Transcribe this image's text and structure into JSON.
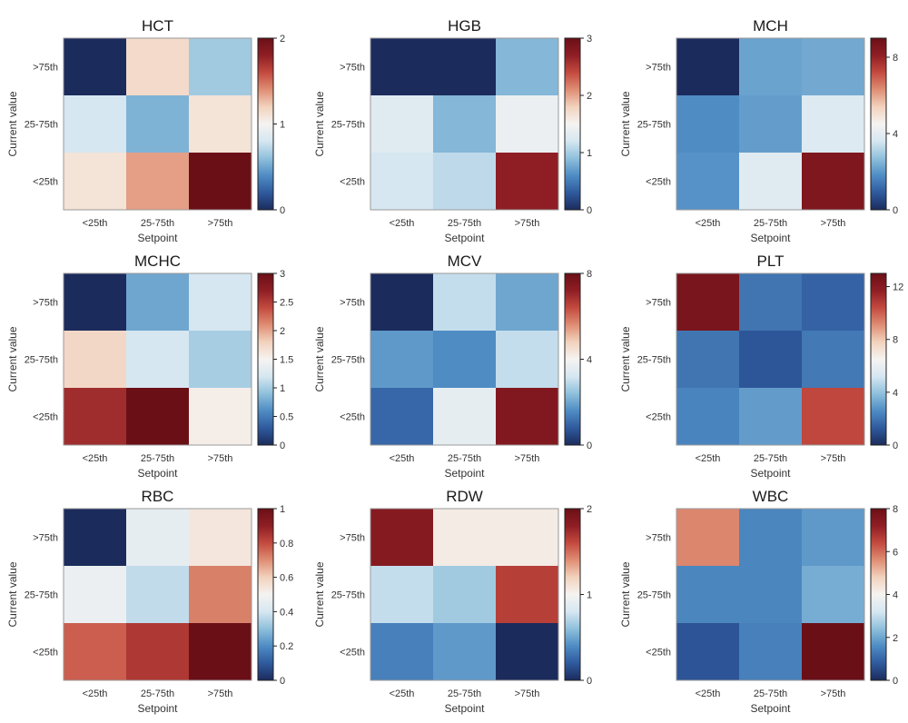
{
  "chart_data": [
    {
      "type": "heatmap",
      "title": "HCT",
      "xlabel": "Setpoint",
      "ylabel": "Current value",
      "x_categories": [
        "<25th",
        "25-75th",
        ">75th"
      ],
      "y_categories": [
        ">75th",
        "25-75th",
        "<25th"
      ],
      "values": [
        [
          0.0,
          1.15,
          0.65
        ],
        [
          0.8,
          0.55,
          1.1
        ],
        [
          1.1,
          1.35,
          2.0
        ]
      ],
      "colorbar": {
        "min": 0,
        "max": 2,
        "ticks": [
          "0",
          "1",
          "2"
        ]
      }
    },
    {
      "type": "heatmap",
      "title": "HGB",
      "xlabel": "Setpoint",
      "ylabel": "Current value",
      "x_categories": [
        "<25th",
        "25-75th",
        ">75th"
      ],
      "y_categories": [
        ">75th",
        "25-75th",
        "<25th"
      ],
      "values": [
        [
          0.0,
          0.0,
          0.85
        ],
        [
          1.3,
          0.85,
          1.4
        ],
        [
          1.2,
          1.1,
          2.7
        ]
      ],
      "colorbar": {
        "min": 0,
        "max": 3,
        "ticks": [
          "0",
          "1",
          "2",
          "3"
        ]
      }
    },
    {
      "type": "heatmap",
      "title": "MCH",
      "xlabel": "Setpoint",
      "ylabel": "Current value",
      "x_categories": [
        "<25th",
        "25-75th",
        ">75th"
      ],
      "y_categories": [
        ">75th",
        "25-75th",
        "<25th"
      ],
      "values": [
        [
          0.0,
          2.2,
          2.3
        ],
        [
          1.8,
          2.1,
          3.8
        ],
        [
          1.9,
          3.9,
          8.5
        ]
      ],
      "colorbar": {
        "min": 0,
        "max": 9,
        "ticks": [
          "0",
          "4",
          "8"
        ]
      }
    },
    {
      "type": "heatmap",
      "title": "MCHC",
      "xlabel": "Setpoint",
      "ylabel": "Current value",
      "x_categories": [
        "<25th",
        "25-75th",
        ">75th"
      ],
      "y_categories": [
        ">75th",
        "25-75th",
        "<25th"
      ],
      "values": [
        [
          0.0,
          0.75,
          1.2
        ],
        [
          1.75,
          1.2,
          1.0
        ],
        [
          2.6,
          3.0,
          1.55
        ]
      ],
      "colorbar": {
        "min": 0,
        "max": 3,
        "ticks": [
          "0",
          "0.5",
          "1",
          "1.5",
          "2",
          "2.5",
          "3"
        ]
      }
    },
    {
      "type": "heatmap",
      "title": "MCV",
      "xlabel": "Setpoint",
      "ylabel": "Current value",
      "x_categories": [
        "<25th",
        "25-75th",
        ">75th"
      ],
      "y_categories": [
        ">75th",
        "25-75th",
        "<25th"
      ],
      "values": [
        [
          0.0,
          3.0,
          2.0
        ],
        [
          1.8,
          1.6,
          3.0
        ],
        [
          1.0,
          3.6,
          7.5
        ]
      ],
      "colorbar": {
        "min": 0,
        "max": 8,
        "ticks": [
          "0",
          "4",
          "8"
        ]
      }
    },
    {
      "type": "heatmap",
      "title": "PLT",
      "xlabel": "Setpoint",
      "ylabel": "Current value",
      "x_categories": [
        "<25th",
        "25-75th",
        ">75th"
      ],
      "y_categories": [
        ">75th",
        "25-75th",
        "<25th"
      ],
      "values": [
        [
          12.5,
          2.0,
          1.5
        ],
        [
          2.0,
          1.2,
          2.1
        ],
        [
          2.4,
          3.0,
          10.5
        ]
      ],
      "colorbar": {
        "min": 0,
        "max": 13,
        "ticks": [
          "0",
          "4",
          "8",
          "12"
        ]
      }
    },
    {
      "type": "heatmap",
      "title": "RBC",
      "xlabel": "Setpoint",
      "ylabel": "Current value",
      "x_categories": [
        "<25th",
        "25-75th",
        ">75th"
      ],
      "y_categories": [
        ">75th",
        "25-75th",
        "<25th"
      ],
      "values": [
        [
          0.0,
          0.45,
          0.54
        ],
        [
          0.47,
          0.37,
          0.72
        ],
        [
          0.77,
          0.84,
          1.0
        ]
      ],
      "colorbar": {
        "min": 0,
        "max": 1,
        "ticks": [
          "0",
          "0.2",
          "0.4",
          "0.6",
          "0.8",
          "1"
        ]
      }
    },
    {
      "type": "heatmap",
      "title": "RDW",
      "xlabel": "Setpoint",
      "ylabel": "Current value",
      "x_categories": [
        "<25th",
        "25-75th",
        ">75th"
      ],
      "y_categories": [
        ">75th",
        "25-75th",
        "<25th"
      ],
      "values": [
        [
          1.85,
          1.05,
          1.05
        ],
        [
          0.75,
          0.65,
          1.65
        ],
        [
          0.35,
          0.45,
          0.0
        ]
      ],
      "colorbar": {
        "min": 0,
        "max": 2,
        "ticks": [
          "0",
          "1",
          "2"
        ]
      }
    },
    {
      "type": "heatmap",
      "title": "WBC",
      "xlabel": "Setpoint",
      "ylabel": "Current value",
      "x_categories": [
        "<25th",
        "25-75th",
        ">75th"
      ],
      "y_categories": [
        ">75th",
        "25-75th",
        "<25th"
      ],
      "values": [
        [
          5.7,
          1.5,
          1.8
        ],
        [
          1.5,
          1.5,
          2.1
        ],
        [
          0.7,
          1.4,
          8.0
        ]
      ],
      "colorbar": {
        "min": 0,
        "max": 8,
        "ticks": [
          "0",
          "2",
          "4",
          "6",
          "8"
        ]
      }
    }
  ],
  "colors": {
    "scale": [
      "#1b2b5c",
      "#2f5a9e",
      "#4f8cc4",
      "#8fc0dc",
      "#d6e7f1",
      "#f5f3f1",
      "#f2d2bd",
      "#df8e74",
      "#c34a3f",
      "#8f1e24",
      "#6b0f17"
    ]
  }
}
